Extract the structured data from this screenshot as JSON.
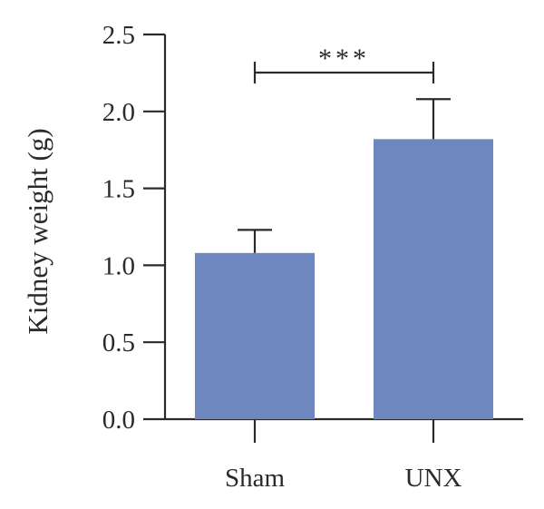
{
  "chart_data": {
    "type": "bar",
    "categories": [
      "Sham",
      "UNX"
    ],
    "values": [
      1.08,
      1.82
    ],
    "error": [
      0.15,
      0.26
    ],
    "ylabel": "Kidney weight (g)",
    "xlabel": "",
    "ylim": [
      0,
      2.5
    ],
    "yticks": [
      0.0,
      0.5,
      1.0,
      1.5,
      2.0,
      2.5
    ],
    "ytick_labels": [
      "0.0",
      "0.5",
      "1.0",
      "1.5",
      "2.0",
      "2.5"
    ],
    "bar_color": "#6f87bf",
    "significance": {
      "between": [
        "Sham",
        "UNX"
      ],
      "label": "***"
    },
    "grid": false,
    "legend": "none"
  }
}
